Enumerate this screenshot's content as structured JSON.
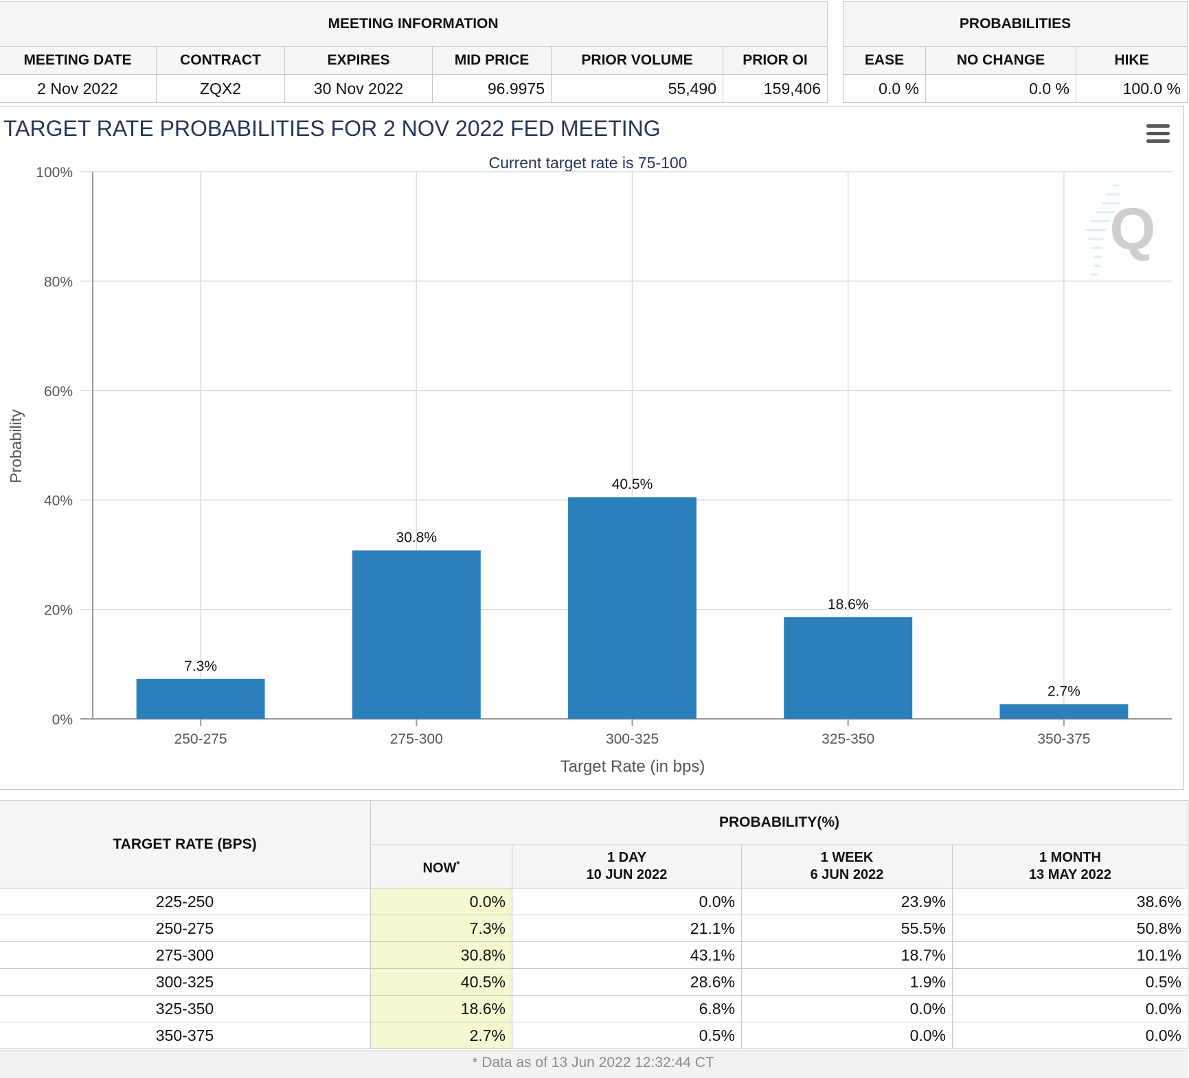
{
  "meeting_info": {
    "title": "MEETING INFORMATION",
    "headers": [
      "MEETING DATE",
      "CONTRACT",
      "EXPIRES",
      "MID PRICE",
      "PRIOR VOLUME",
      "PRIOR OI"
    ],
    "row": [
      "2 Nov 2022",
      "ZQX2",
      "30 Nov 2022",
      "96.9975",
      "55,490",
      "159,406"
    ]
  },
  "probabilities": {
    "title": "PROBABILITIES",
    "headers": [
      "EASE",
      "NO CHANGE",
      "HIKE"
    ],
    "row": [
      "0.0 %",
      "0.0 %",
      "100.0 %"
    ]
  },
  "chart_data": {
    "type": "bar",
    "title": "TARGET RATE PROBABILITIES FOR 2 NOV 2022 FED MEETING",
    "subtitle": "Current target rate is 75-100",
    "xlabel": "Target Rate (in bps)",
    "ylabel": "Probability",
    "categories": [
      "250-275",
      "275-300",
      "300-325",
      "325-350",
      "350-375"
    ],
    "values": [
      7.3,
      30.8,
      40.5,
      18.6,
      2.7
    ],
    "data_labels": [
      "7.3%",
      "30.8%",
      "40.5%",
      "18.6%",
      "2.7%"
    ],
    "ylim": [
      0,
      100
    ],
    "yticks": [
      0,
      20,
      40,
      60,
      80,
      100
    ],
    "ytick_labels": [
      "0%",
      "20%",
      "40%",
      "60%",
      "80%",
      "100%"
    ],
    "grid": true,
    "bar_color": "#2b80bc",
    "watermark_text": "Q"
  },
  "prob_table": {
    "target_header": "TARGET RATE (BPS)",
    "group_header": "PROBABILITY(%)",
    "columns": [
      {
        "line1": "NOW",
        "sup": "*",
        "line2": ""
      },
      {
        "line1": "1 DAY",
        "line2": "10 JUN 2022"
      },
      {
        "line1": "1 WEEK",
        "line2": "6 JUN 2022"
      },
      {
        "line1": "1 MONTH",
        "line2": "13 MAY 2022"
      }
    ],
    "rows": [
      {
        "rate": "225-250",
        "values": [
          "0.0%",
          "0.0%",
          "23.9%",
          "38.6%"
        ]
      },
      {
        "rate": "250-275",
        "values": [
          "7.3%",
          "21.1%",
          "55.5%",
          "50.8%"
        ]
      },
      {
        "rate": "275-300",
        "values": [
          "30.8%",
          "43.1%",
          "18.7%",
          "10.1%"
        ]
      },
      {
        "rate": "300-325",
        "values": [
          "40.5%",
          "28.6%",
          "1.9%",
          "0.5%"
        ]
      },
      {
        "rate": "325-350",
        "values": [
          "18.6%",
          "6.8%",
          "0.0%",
          "0.0%"
        ]
      },
      {
        "rate": "350-375",
        "values": [
          "2.7%",
          "0.5%",
          "0.0%",
          "0.0%"
        ]
      }
    ],
    "footnote": "* Data as of 13 Jun 2022 12:32:44 CT"
  }
}
